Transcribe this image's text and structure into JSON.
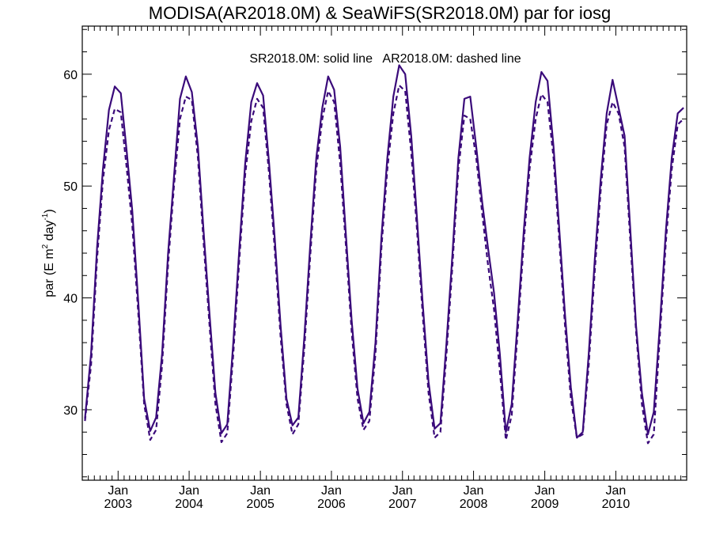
{
  "chart_data": {
    "type": "line",
    "title": "MODISA(AR2018.0M) & SeaWiFS(SR2018.0M)  par for iosg",
    "annotation": "SR2018.0M: solid line   AR2018.0M: dashed line",
    "ylabel": {
      "base": "par (E m",
      "sup1": "2",
      "mid": " day",
      "sup2": "-1",
      "end": ")"
    },
    "xlabel": "",
    "ylim": [
      23.7,
      64.3
    ],
    "xlim": [
      "2002-07-01",
      "2010-12-31"
    ],
    "grid": false,
    "x_ticks": [
      {
        "month": "Jan",
        "year": "2003"
      },
      {
        "month": "Jan",
        "year": "2004"
      },
      {
        "month": "Jan",
        "year": "2005"
      },
      {
        "month": "Jan",
        "year": "2006"
      },
      {
        "month": "Jan",
        "year": "2007"
      },
      {
        "month": "Jan",
        "year": "2008"
      },
      {
        "month": "Jan",
        "year": "2009"
      },
      {
        "month": "Jan",
        "year": "2010"
      }
    ],
    "y_ticks": [
      30,
      40,
      50,
      60
    ],
    "line_color": "#3a0a7a",
    "series": [
      {
        "name": "SR2018.0M",
        "style": "solid",
        "x": [
          "2002-07",
          "2002-08",
          "2002-09",
          "2002-10",
          "2002-11",
          "2002-12",
          "2003-01",
          "2003-02",
          "2003-03",
          "2003-04",
          "2003-05",
          "2003-06",
          "2003-07",
          "2003-08",
          "2003-09",
          "2003-10",
          "2003-11",
          "2003-12",
          "2004-01",
          "2004-02",
          "2004-03",
          "2004-04",
          "2004-05",
          "2004-06",
          "2004-07",
          "2004-08",
          "2004-09",
          "2004-10",
          "2004-11",
          "2004-12",
          "2005-01",
          "2005-02",
          "2005-03",
          "2005-04",
          "2005-05",
          "2005-06",
          "2005-07",
          "2005-08",
          "2005-09",
          "2005-10",
          "2005-11",
          "2005-12",
          "2006-01",
          "2006-02",
          "2006-03",
          "2006-04",
          "2006-05",
          "2006-06",
          "2006-07",
          "2006-08",
          "2006-09",
          "2006-10",
          "2006-11",
          "2006-12",
          "2007-01",
          "2007-02",
          "2007-03",
          "2007-04",
          "2007-05",
          "2007-06",
          "2007-07",
          "2007-08",
          "2007-09",
          "2007-10",
          "2007-11",
          "2007-12",
          "2008-01",
          "2008-02",
          "2008-03",
          "2008-04",
          "2008-05",
          "2008-06",
          "2008-07",
          "2008-08",
          "2008-09",
          "2008-10",
          "2008-11",
          "2008-12",
          "2009-01",
          "2009-02",
          "2009-03",
          "2009-04",
          "2009-05",
          "2009-06",
          "2009-07",
          "2009-08",
          "2009-09",
          "2009-10",
          "2009-11",
          "2009-12",
          "2010-01",
          "2010-02",
          "2010-03",
          "2010-04",
          "2010-05",
          "2010-06",
          "2010-07",
          "2010-08",
          "2010-09",
          "2010-10",
          "2010-11",
          "2010-12"
        ],
        "y": [
          29.2,
          35.0,
          44.5,
          51.5,
          56.8,
          58.9,
          58.3,
          53.0,
          47.8,
          39.5,
          31.0,
          28.1,
          29.3,
          35.0,
          44.0,
          50.8,
          57.8,
          59.8,
          58.4,
          53.5,
          46.0,
          38.5,
          31.5,
          27.9,
          28.7,
          36.0,
          44.5,
          52.0,
          57.5,
          59.2,
          58.1,
          52.0,
          45.5,
          37.5,
          31.0,
          28.6,
          29.3,
          36.5,
          45.0,
          52.5,
          57.0,
          59.8,
          58.6,
          53.5,
          46.0,
          38.0,
          31.9,
          28.8,
          29.8,
          36.0,
          45.5,
          52.5,
          58.0,
          60.8,
          60.0,
          54.5,
          47.5,
          39.5,
          32.5,
          28.3,
          28.8,
          36.0,
          44.0,
          52.5,
          57.8,
          58.0,
          53.5,
          48.5,
          44.5,
          40.5,
          35.0,
          28.0,
          30.5,
          38.0,
          46.0,
          52.5,
          57.5,
          60.2,
          59.4,
          53.5,
          46.5,
          38.5,
          32.0,
          27.5,
          28.0,
          35.0,
          43.5,
          50.5,
          56.5,
          59.5,
          57.0,
          54.5,
          46.5,
          37.5,
          31.5,
          27.8,
          29.8,
          37.5,
          46.0,
          52.5,
          56.5,
          57.0
        ]
      },
      {
        "name": "AR2018.0M",
        "style": "dashed",
        "x": [
          "2002-07",
          "2002-08",
          "2002-09",
          "2002-10",
          "2002-11",
          "2002-12",
          "2003-01",
          "2003-02",
          "2003-03",
          "2003-04",
          "2003-05",
          "2003-06",
          "2003-07",
          "2003-08",
          "2003-09",
          "2003-10",
          "2003-11",
          "2003-12",
          "2004-01",
          "2004-02",
          "2004-03",
          "2004-04",
          "2004-05",
          "2004-06",
          "2004-07",
          "2004-08",
          "2004-09",
          "2004-10",
          "2004-11",
          "2004-12",
          "2005-01",
          "2005-02",
          "2005-03",
          "2005-04",
          "2005-05",
          "2005-06",
          "2005-07",
          "2005-08",
          "2005-09",
          "2005-10",
          "2005-11",
          "2005-12",
          "2006-01",
          "2006-02",
          "2006-03",
          "2006-04",
          "2006-05",
          "2006-06",
          "2006-07",
          "2006-08",
          "2006-09",
          "2006-10",
          "2006-11",
          "2006-12",
          "2007-01",
          "2007-02",
          "2007-03",
          "2007-04",
          "2007-05",
          "2007-06",
          "2007-07",
          "2007-08",
          "2007-09",
          "2007-10",
          "2007-11",
          "2007-12",
          "2008-01",
          "2008-02",
          "2008-03",
          "2008-04",
          "2008-05",
          "2008-06",
          "2008-07",
          "2008-08",
          "2008-09",
          "2008-10",
          "2008-11",
          "2008-12",
          "2009-01",
          "2009-02",
          "2009-03",
          "2009-04",
          "2009-05",
          "2009-06",
          "2009-07",
          "2009-08",
          "2009-09",
          "2009-10",
          "2009-11",
          "2009-12",
          "2010-01",
          "2010-02",
          "2010-03",
          "2010-04",
          "2010-05",
          "2010-06",
          "2010-07",
          "2010-08",
          "2010-09",
          "2010-10",
          "2010-11",
          "2010-12"
        ],
        "y": [
          29.0,
          34.0,
          43.5,
          50.5,
          55.0,
          56.9,
          56.6,
          51.5,
          46.5,
          38.5,
          30.5,
          27.3,
          28.2,
          34.0,
          43.0,
          50.0,
          56.0,
          58.0,
          57.7,
          52.5,
          45.0,
          37.5,
          30.5,
          27.1,
          27.9,
          35.0,
          43.5,
          51.0,
          55.8,
          57.8,
          57.0,
          51.0,
          44.5,
          36.5,
          30.5,
          27.8,
          28.7,
          35.5,
          44.0,
          51.5,
          56.0,
          58.5,
          57.5,
          52.0,
          45.0,
          37.0,
          31.0,
          28.2,
          29.0,
          35.0,
          44.5,
          51.5,
          56.5,
          59.0,
          58.5,
          53.0,
          46.5,
          38.5,
          31.5,
          27.5,
          28.0,
          35.0,
          43.0,
          51.5,
          56.3,
          56.0,
          52.5,
          47.5,
          43.0,
          39.0,
          33.5,
          27.3,
          29.5,
          37.0,
          45.0,
          51.5,
          56.0,
          58.2,
          57.5,
          52.5,
          45.5,
          37.5,
          31.0,
          27.5,
          27.8,
          34.0,
          42.5,
          49.5,
          55.5,
          57.5,
          56.5,
          53.5,
          45.5,
          37.0,
          30.5,
          27.0,
          27.8,
          36.5,
          45.0,
          51.5,
          55.5,
          56.0
        ]
      }
    ]
  }
}
